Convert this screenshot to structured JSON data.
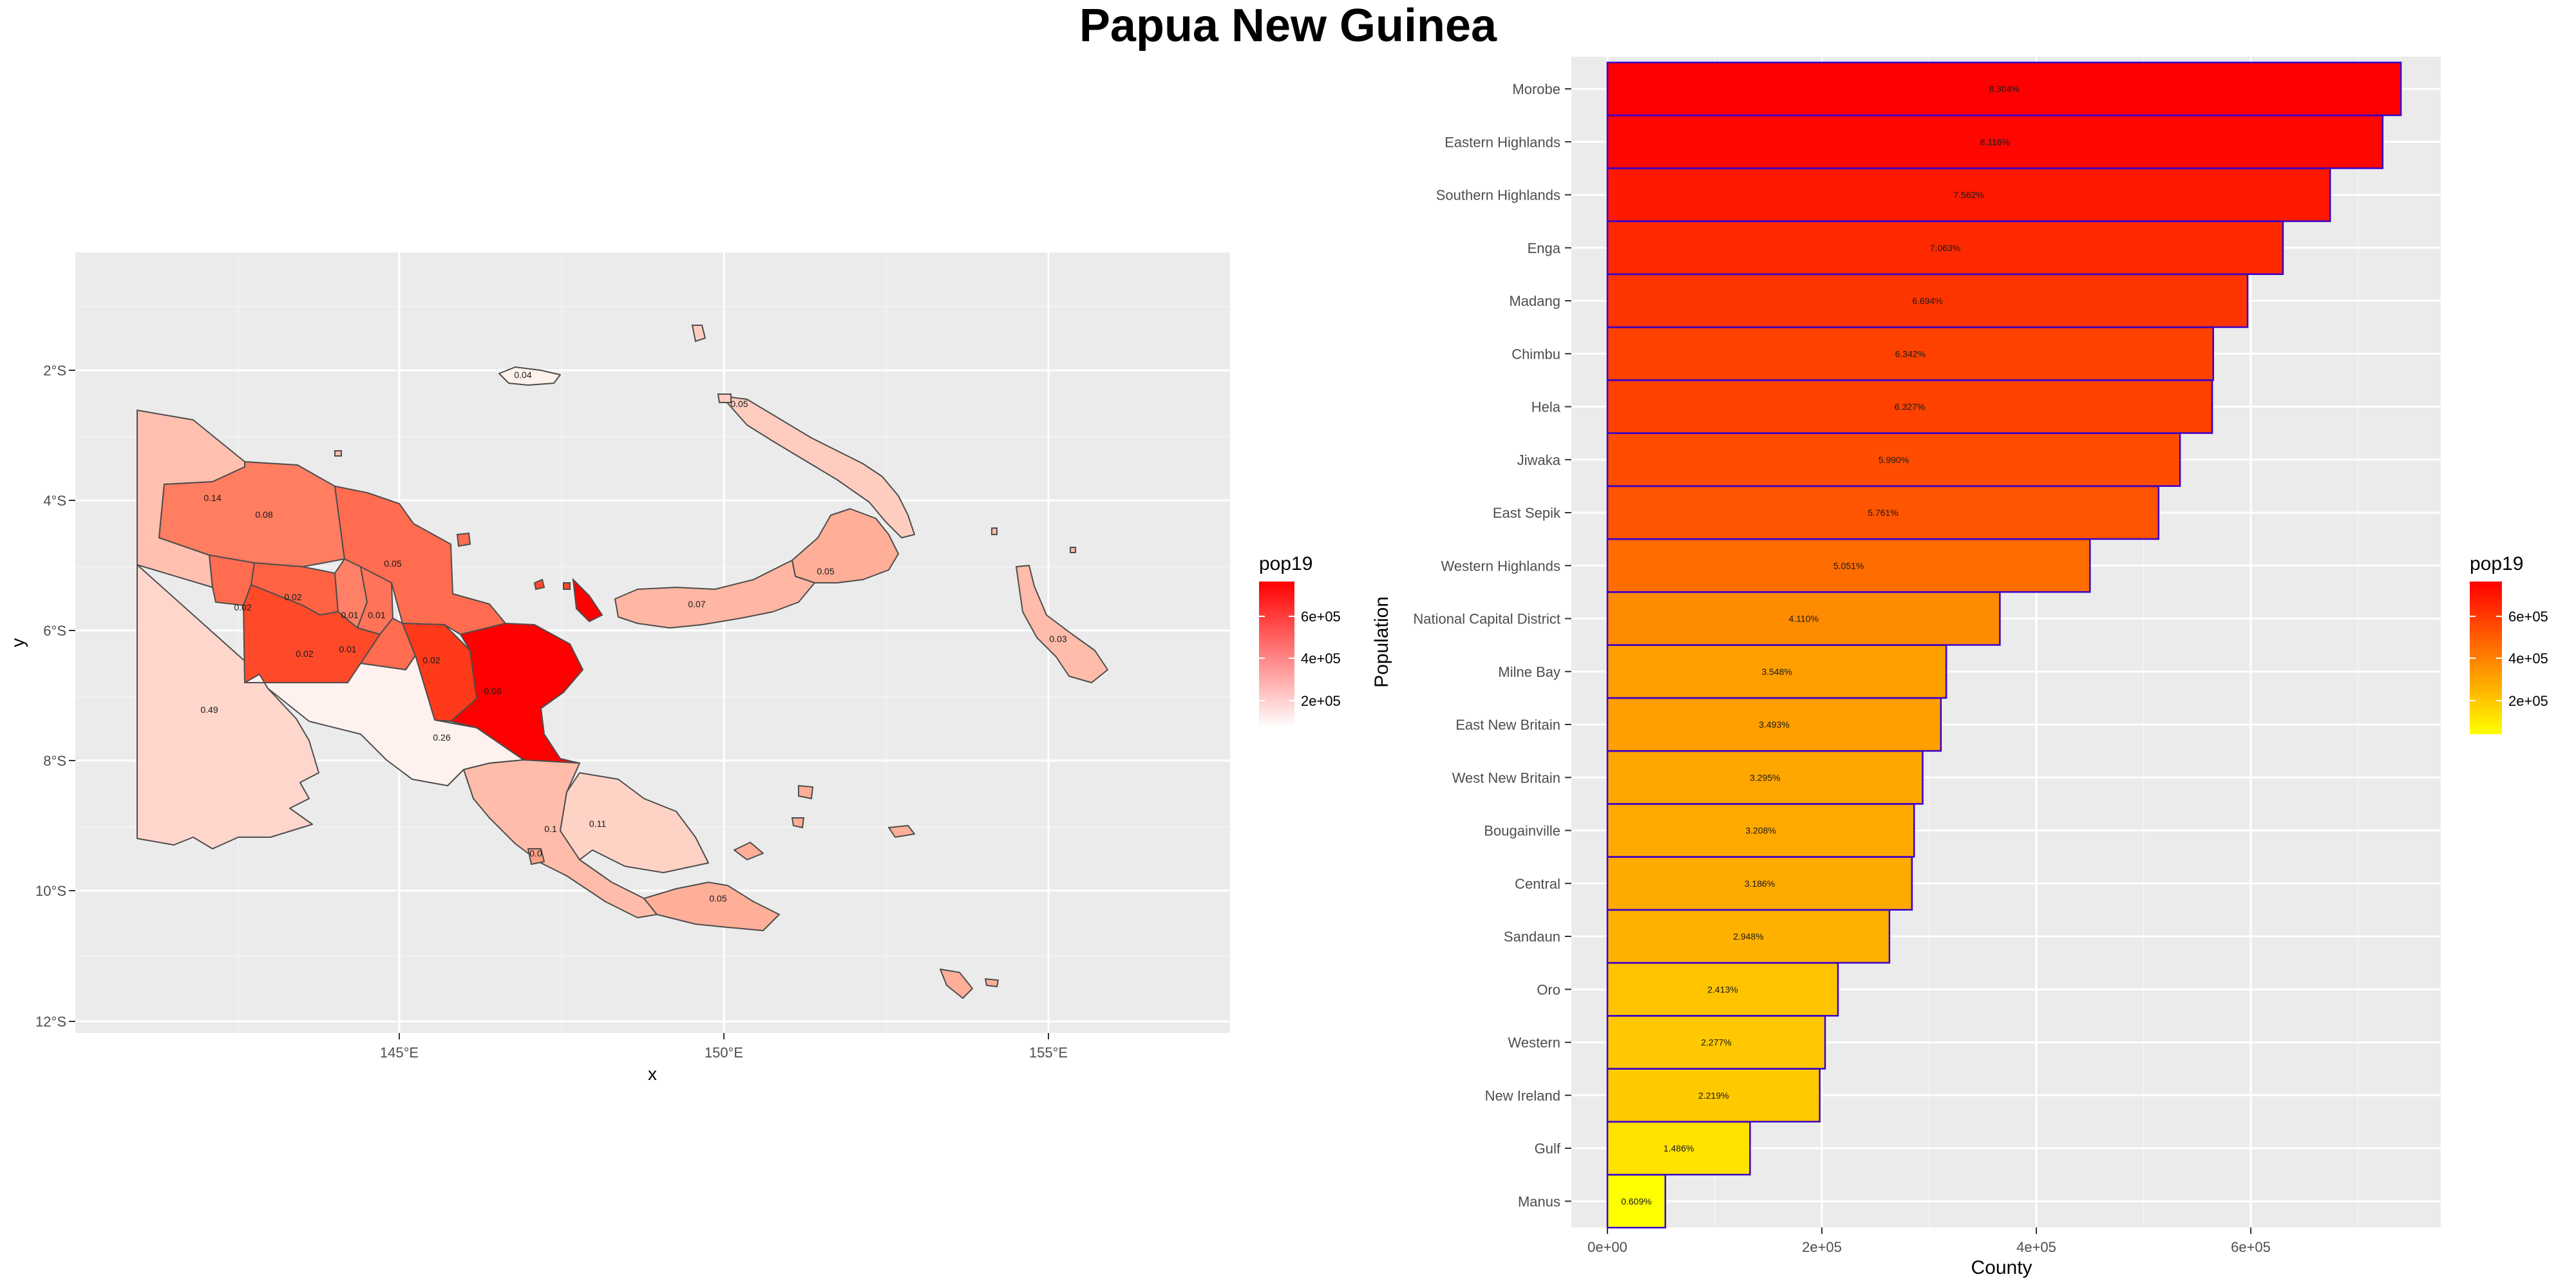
{
  "title": "Papua New Guinea",
  "colors": {
    "panel_bg": "#ebebeb",
    "grid": "#ffffff",
    "map_low": "#ffffff",
    "map_high": "#ff0000",
    "bar_low": "#ffff00",
    "bar_high": "#ff0000",
    "bar_outline": "#3a00c8",
    "map_border": "#4d4d4d"
  },
  "chart_data": [
    {
      "type": "map",
      "xlabel": "x",
      "ylabel": "y",
      "x_ticks": [
        "145°E",
        "150°E",
        "155°E"
      ],
      "y_ticks": [
        "2°S",
        "4°S",
        "6°S",
        "8°S",
        "10°S",
        "12°S"
      ],
      "legend": {
        "title": "pop19",
        "labels": [
          "6e+05",
          "4e+05",
          "2e+05"
        ],
        "position": "right"
      },
      "regions": [
        {
          "name": "Western",
          "label": "0.49",
          "pop19": 180000
        },
        {
          "name": "Sandaun",
          "label": "0.14",
          "pop19": 250000
        },
        {
          "name": "East Sepik",
          "label": "0.08",
          "pop19": 450000
        },
        {
          "name": "Madang",
          "label": "0.05",
          "pop19": 500000
        },
        {
          "name": "Hela",
          "label": "0.02",
          "pop19": 500000
        },
        {
          "name": "Enga",
          "label": "0.02",
          "pop19": 550000
        },
        {
          "name": "Western Highlands",
          "label": "0.01",
          "pop19": 400000
        },
        {
          "name": "Jiwaka",
          "label": "0.01",
          "pop19": 480000
        },
        {
          "name": "Chimbu",
          "label": "0.01",
          "pop19": 500000
        },
        {
          "name": "Southern Highlands",
          "label": "0.02",
          "pop19": 600000
        },
        {
          "name": "Eastern Highlands",
          "label": "0.02",
          "pop19": 620000
        },
        {
          "name": "Morobe",
          "label": "0.06",
          "pop19": 700000
        },
        {
          "name": "Gulf",
          "label": "0.26",
          "pop19": 120000
        },
        {
          "name": "Central",
          "label": "0.1",
          "pop19": 270000
        },
        {
          "name": "National Capital District",
          "label": "0.0",
          "pop19": 360000
        },
        {
          "name": "Oro",
          "label": "0.11",
          "pop19": 200000
        },
        {
          "name": "Milne Bay",
          "label": "0.05",
          "pop19": 300000
        },
        {
          "name": "Manus",
          "label": "0.04",
          "pop19": 60000
        },
        {
          "name": "New Ireland",
          "label": "0.05",
          "pop19": 190000
        },
        {
          "name": "East New Britain",
          "label": "0.05",
          "pop19": 300000
        },
        {
          "name": "West New Britain",
          "label": "0.07",
          "pop19": 280000
        },
        {
          "name": "Bougainville",
          "label": "0.03",
          "pop19": 270000
        }
      ]
    },
    {
      "type": "bar",
      "orientation": "horizontal",
      "xlabel": "County",
      "ylabel": "Population",
      "xlim": [
        0,
        780000
      ],
      "x_ticks": [
        {
          "value": 0,
          "label": "0e+00"
        },
        {
          "value": 200000,
          "label": "2e+05"
        },
        {
          "value": 400000,
          "label": "4e+05"
        },
        {
          "value": 600000,
          "label": "6e+05"
        }
      ],
      "legend": {
        "title": "pop19",
        "labels": [
          "6e+05",
          "4e+05",
          "2e+05"
        ],
        "position": "right"
      },
      "categories": [
        "Morobe",
        "Eastern Highlands",
        "Southern Highlands",
        "Enga",
        "Madang",
        "Chimbu",
        "Hela",
        "Jiwaka",
        "East Sepik",
        "Western Highlands",
        "National Capital District",
        "Milne Bay",
        "East New Britain",
        "West New Britain",
        "Bougainville",
        "Central",
        "Sandaun",
        "Oro",
        "Western",
        "New Ireland",
        "Gulf",
        "Manus"
      ],
      "values": [
        740000,
        723000,
        674000,
        630000,
        597000,
        565000,
        564000,
        534000,
        514000,
        450000,
        366000,
        316000,
        311000,
        294000,
        286000,
        284000,
        263000,
        215000,
        203000,
        198000,
        133000,
        54000
      ],
      "labels": [
        "8.304%",
        "8.116%",
        "7.562%",
        "7.063%",
        "6.694%",
        "6.342%",
        "6.327%",
        "5.990%",
        "5.761%",
        "5.051%",
        "4.110%",
        "3.548%",
        "3.493%",
        "3.295%",
        "3.208%",
        "3.186%",
        "2.948%",
        "2.413%",
        "2.277%",
        "2.219%",
        "1.486%",
        "0.609%"
      ]
    }
  ]
}
